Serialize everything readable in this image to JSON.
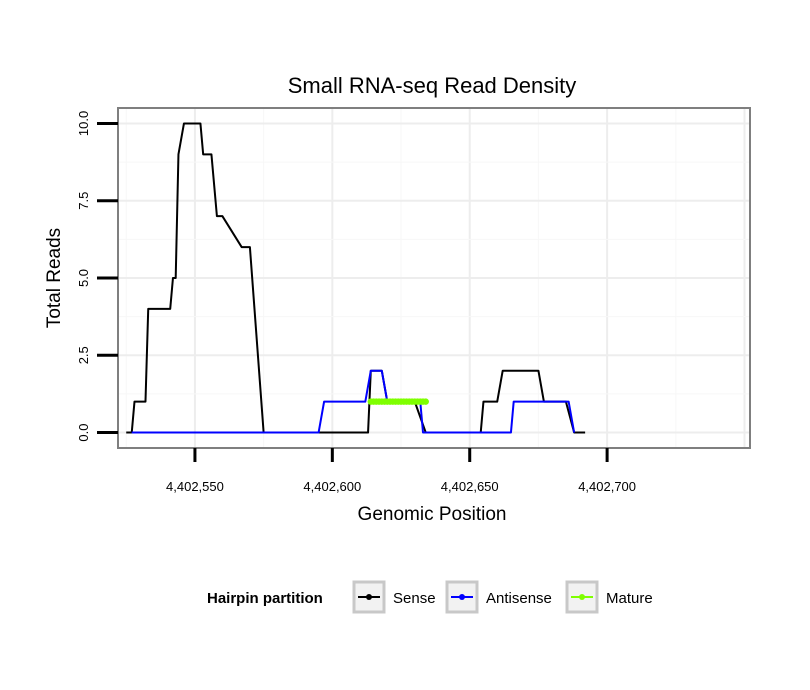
{
  "chart_data": {
    "type": "line",
    "title": "Small RNA-seq Read Density",
    "xlabel": "Genomic Position",
    "ylabel": "Total Reads",
    "xlim": [
      4402522,
      4402752
    ],
    "ylim": [
      -0.5,
      10.5
    ],
    "x_ticks": [
      4402550,
      4402600,
      4402650,
      4402700
    ],
    "x_tick_labels": [
      "4,402,550",
      "4,402,600",
      "4,402,650",
      "4,402,700"
    ],
    "y_ticks": [
      0,
      2.5,
      5,
      7.5,
      10
    ],
    "y_tick_labels": [
      "0.0",
      "2.5",
      "5.0",
      "7.5",
      "10.0"
    ],
    "grid": true,
    "legend": {
      "title": "Hairpin partition",
      "position": "bottom",
      "entries": [
        "Sense",
        "Antisense",
        "Mature"
      ]
    },
    "series": [
      {
        "name": "Sense",
        "color": "#000000",
        "x": [
          4402525,
          4402527,
          4402528,
          4402532,
          4402533,
          4402539,
          4402540,
          4402541,
          4402542,
          4402543,
          4402544,
          4402546,
          4402552,
          4402553,
          4402555,
          4402556,
          4402558,
          4402560,
          4402567,
          4402570,
          4402575,
          4402590,
          4402610,
          4402613,
          4402614,
          4402618,
          4402620,
          4402630,
          4402634,
          4402635,
          4402640,
          4402650,
          4402654,
          4402655,
          4402660,
          4402662,
          4402663,
          4402670,
          4402675,
          4402677,
          4402680,
          4402683,
          4402685,
          4402688,
          4402690,
          4402692
        ],
        "y": [
          0,
          0,
          1,
          1,
          4,
          4,
          4,
          4,
          5,
          5,
          9,
          10,
          10,
          9,
          9,
          9,
          7,
          7,
          6,
          6,
          0,
          0,
          0,
          0,
          2,
          2,
          1,
          1,
          0,
          0,
          0,
          0,
          0,
          1,
          1,
          2,
          2,
          2,
          2,
          1,
          1,
          1,
          1,
          0,
          0,
          0
        ]
      },
      {
        "name": "Antisense",
        "color": "#0000ff",
        "x": [
          4402527,
          4402540,
          4402560,
          4402580,
          4402595,
          4402597,
          4402605,
          4402610,
          4402612,
          4402614,
          4402618,
          4402620,
          4402630,
          4402632,
          4402633,
          4402640,
          4402665,
          4402666,
          4402670,
          4402680,
          4402684,
          4402686,
          4402688
        ],
        "y": [
          0,
          0,
          0,
          0,
          0,
          1,
          1,
          1,
          1,
          2,
          2,
          1,
          1,
          1,
          0,
          0,
          0,
          1,
          1,
          1,
          1,
          1,
          0
        ]
      },
      {
        "name": "Mature",
        "color": "#7fff00",
        "x": [
          4402614,
          4402615,
          4402616,
          4402617,
          4402618,
          4402619,
          4402620,
          4402621,
          4402622,
          4402623,
          4402624,
          4402625,
          4402626,
          4402627,
          4402628,
          4402629,
          4402630,
          4402631,
          4402632,
          4402633,
          4402634
        ],
        "y": [
          1,
          1,
          1,
          1,
          1,
          1,
          1,
          1,
          1,
          1,
          1,
          1,
          1,
          1,
          1,
          1,
          1,
          1,
          1,
          1,
          1
        ]
      }
    ]
  }
}
